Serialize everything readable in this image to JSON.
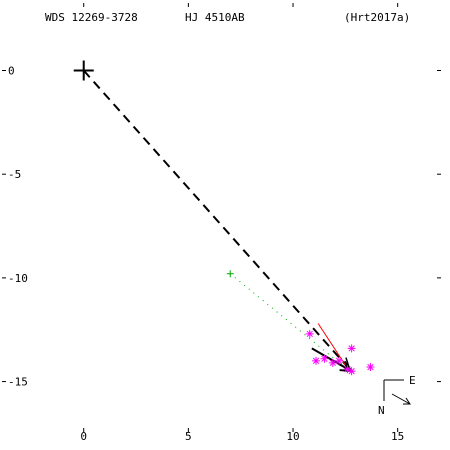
{
  "header": {
    "wds_id": "WDS 12269-3728",
    "pair_name": "HJ 4510AB",
    "reference": "(Hrt2017a)"
  },
  "compass": {
    "east_label": "E",
    "north_label": "N"
  },
  "colors": {
    "axes": "#000000",
    "measures": "#ff00ff",
    "first_obs": "#00aa00",
    "orbit_dots": "#00aa00",
    "residual_line": "#ff0000",
    "motion_arrow": "#000000"
  },
  "chart_data": {
    "type": "scatter",
    "title": "",
    "xlabel": "",
    "ylabel": "",
    "xlim": [
      -4,
      17.5
    ],
    "ylim": [
      -18.3,
      3.4
    ],
    "x_ticks": [
      0,
      5,
      10,
      15
    ],
    "y_ticks": [
      0,
      -5,
      -10,
      -15
    ],
    "x_tick_labels": [
      "0",
      "5",
      "10",
      "15"
    ],
    "y_tick_labels": [
      "0",
      "-5",
      "-10",
      "-15"
    ],
    "grid": false,
    "primary": {
      "x": 0,
      "y": 0,
      "marker": "plus"
    },
    "first_observation": {
      "x": 7.0,
      "y": -9.8,
      "marker": "plus"
    },
    "measures": {
      "marker": "asterisk",
      "points": [
        {
          "x": 10.8,
          "y": -12.7
        },
        {
          "x": 11.1,
          "y": -14.0
        },
        {
          "x": 11.5,
          "y": -13.9
        },
        {
          "x": 11.9,
          "y": -14.1
        },
        {
          "x": 12.2,
          "y": -14.0
        },
        {
          "x": 12.6,
          "y": -14.4
        },
        {
          "x": 12.8,
          "y": -14.5
        },
        {
          "x": 12.8,
          "y": -13.4
        },
        {
          "x": 13.7,
          "y": -14.3
        }
      ]
    },
    "motion_segments": [
      {
        "name": "primary-to-latest",
        "style": "dashed",
        "from": [
          0,
          0
        ],
        "to": [
          12.7,
          -14.4
        ]
      },
      {
        "name": "first-to-latest",
        "style": "dotted",
        "from": [
          7.0,
          -9.8
        ],
        "to": [
          12.7,
          -14.5
        ]
      },
      {
        "name": "proper-motion",
        "style": "solid",
        "from": [
          10.9,
          -13.4
        ],
        "to": [
          12.8,
          -14.5
        ]
      },
      {
        "name": "residual",
        "style": "solid-red",
        "from": [
          11.2,
          -12.2
        ],
        "to": [
          12.5,
          -14.2
        ]
      }
    ]
  }
}
